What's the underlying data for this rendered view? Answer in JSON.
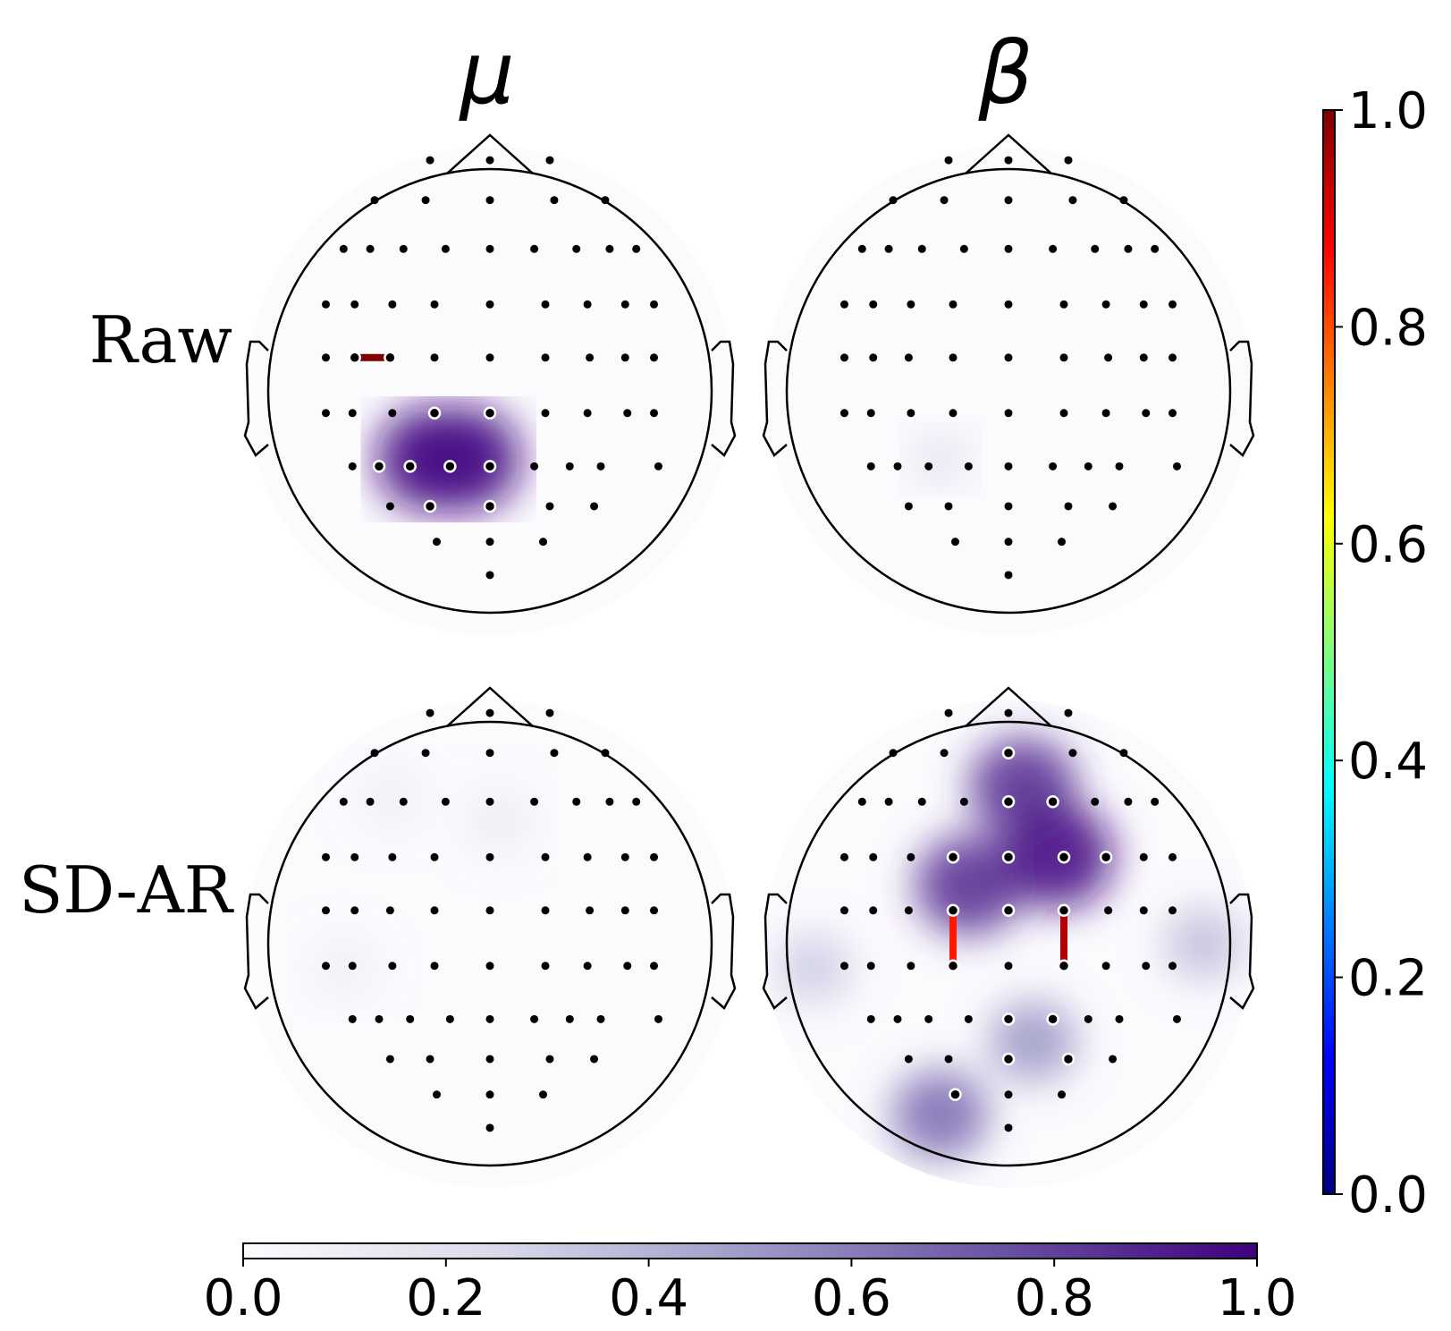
{
  "chart_data": {
    "type": "heatmap",
    "description_kind": "eeg-topomap-grid",
    "columns": [
      "μ",
      "β"
    ],
    "rows": [
      "Raw",
      "SD-AR"
    ],
    "electrode_count": 64,
    "panels": [
      {
        "row": "Raw",
        "col": "μ",
        "blobs": [
          {
            "x": 0.38,
            "y": 0.64,
            "value": 0.95
          },
          {
            "x": 0.45,
            "y": 0.64,
            "value": 0.95
          }
        ],
        "highlighted": [
          0,
          1
        ],
        "connections": [
          {
            "from": "C5",
            "to": "C3",
            "strength": 1.0
          }
        ]
      },
      {
        "row": "Raw",
        "col": "β",
        "blobs": [
          {
            "x": 0.36,
            "y": 0.64,
            "value": 0.15
          }
        ],
        "highlighted": [],
        "connections": []
      },
      {
        "row": "SD-AR",
        "col": "μ",
        "blobs": [
          {
            "x": 0.3,
            "y": 0.2,
            "value": 0.1
          },
          {
            "x": 0.52,
            "y": 0.25,
            "value": 0.12
          },
          {
            "x": 0.2,
            "y": 0.55,
            "value": 0.1
          }
        ],
        "highlighted": [],
        "connections": []
      },
      {
        "row": "SD-AR",
        "col": "β",
        "blobs": [
          {
            "x": 0.53,
            "y": 0.18,
            "value": 0.85
          },
          {
            "x": 0.42,
            "y": 0.38,
            "value": 0.85
          },
          {
            "x": 0.6,
            "y": 0.32,
            "value": 0.95
          },
          {
            "x": 0.36,
            "y": 0.85,
            "value": 0.65
          },
          {
            "x": 0.55,
            "y": 0.7,
            "value": 0.5
          },
          {
            "x": 0.1,
            "y": 0.55,
            "value": 0.3
          },
          {
            "x": 0.9,
            "y": 0.5,
            "value": 0.35
          }
        ],
        "highlighted": [],
        "connections": [
          {
            "from": "C1",
            "to": "CP1",
            "strength": 0.85
          },
          {
            "from": "C2",
            "to": "CP2",
            "strength": 0.95
          }
        ]
      }
    ],
    "colorbar_topomap": {
      "orientation": "horizontal",
      "min": 0.0,
      "max": 1.0,
      "ticks": [
        "0.0",
        "0.2",
        "0.4",
        "0.6",
        "0.8",
        "1.0"
      ],
      "colormap": "Purples",
      "colors": [
        "#fcfbfd",
        "#dadaeb",
        "#9e9ac8",
        "#6a51a3",
        "#3f007d"
      ]
    },
    "colorbar_connectivity": {
      "orientation": "vertical",
      "min": 0.0,
      "max": 1.0,
      "ticks": [
        "0.0",
        "0.2",
        "0.4",
        "0.6",
        "0.8",
        "1.0"
      ],
      "colormap": "jet",
      "colors": [
        "#00007f",
        "#0000ff",
        "#007fff",
        "#00ffff",
        "#7fff7f",
        "#ffff00",
        "#ff7f00",
        "#ff0000",
        "#7f0000"
      ]
    }
  }
}
